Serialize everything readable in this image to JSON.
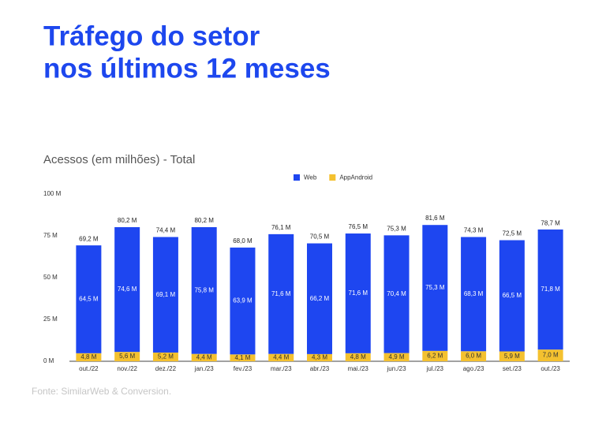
{
  "chart_data": {
    "type": "stacked-bar",
    "title": [
      "Tráfego do setor",
      "nos últimos 12 meses"
    ],
    "subtitle": "Acessos (em milhões) - Total",
    "source": "Fonte: SimilarWeb & Conversion.",
    "categories": [
      "out./22",
      "nov./22",
      "dez./22",
      "jan./23",
      "fev./23",
      "mar./23",
      "abr./23",
      "mai./23",
      "jun./23",
      "jul./23",
      "ago./23",
      "set./23",
      "out./23"
    ],
    "series": [
      {
        "name": "AppAndroid",
        "color": "#f4c12f",
        "values": [
          4.8,
          5.6,
          5.2,
          4.4,
          4.1,
          4.4,
          4.3,
          4.8,
          4.9,
          6.2,
          6.0,
          5.9,
          7.0
        ],
        "value_labels": [
          "4,8 M",
          "5,6 M",
          "5,2 M",
          "4,4 M",
          "4,1 M",
          "4,4 M",
          "4,3 M",
          "4,8 M",
          "4,9 M",
          "6,2 M",
          "6,0 M",
          "5,9 M",
          "7,0 M"
        ]
      },
      {
        "name": "Web",
        "color": "#1e46f0",
        "values": [
          64.5,
          74.6,
          69.1,
          75.8,
          63.9,
          71.6,
          66.2,
          71.6,
          70.4,
          75.3,
          68.3,
          66.5,
          71.8
        ],
        "value_labels": [
          "64,5 M",
          "74,6 M",
          "69,1 M",
          "75,8 M",
          "63,9 M",
          "71,6 M",
          "66,2 M",
          "71,6 M",
          "70,4 M",
          "75,3 M",
          "68,3 M",
          "66,5 M",
          "71,8 M"
        ]
      }
    ],
    "totals": {
      "values": [
        69.2,
        80.2,
        74.4,
        80.2,
        68.0,
        76.1,
        70.5,
        76.5,
        75.3,
        81.6,
        74.3,
        72.5,
        78.7
      ],
      "value_labels": [
        "69,2 M",
        "80,2 M",
        "74,4 M",
        "80,2 M",
        "68,0 M",
        "76,1 M",
        "70,5 M",
        "76,5 M",
        "75,3 M",
        "81,6 M",
        "74,3 M",
        "72,5 M",
        "78,7 M"
      ]
    },
    "legend_order": [
      1,
      0
    ],
    "ylim": [
      0,
      100
    ],
    "yticks": [
      {
        "value": 0,
        "label": "0 M"
      },
      {
        "value": 25,
        "label": "25 M"
      },
      {
        "value": 50,
        "label": "50 M"
      },
      {
        "value": 75,
        "label": "75 M"
      },
      {
        "value": 100,
        "label": "100 M"
      }
    ],
    "grid": false
  }
}
